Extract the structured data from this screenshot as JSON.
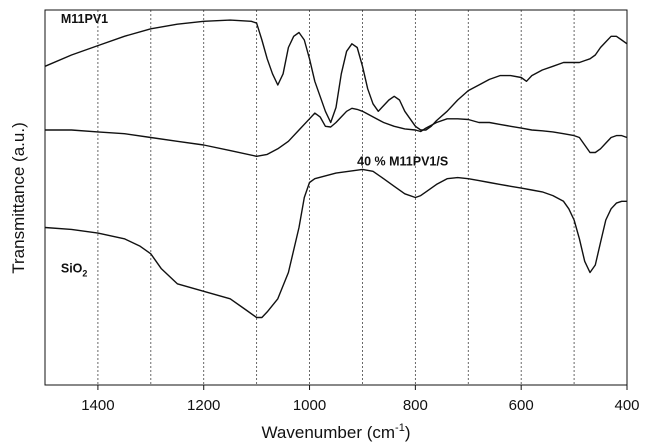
{
  "chart_data": {
    "type": "line",
    "title": "",
    "xlabel": "Wavenumber (cm",
    "xlabel_sup": "-1",
    "xlabel_tail": ")",
    "ylabel": "Transmittance (a.u.)",
    "xlim": [
      1500,
      400
    ],
    "x_reversed": true,
    "ylim": [
      0,
      100
    ],
    "y_ticks_shown": false,
    "xticks": [
      1400,
      1200,
      1000,
      800,
      600,
      400
    ],
    "gridlines_x": [
      1400,
      1300,
      1200,
      1100,
      1000,
      900,
      800,
      700,
      600,
      500
    ],
    "grid": "vertical dashed",
    "series": [
      {
        "name": "M11PV1",
        "label_parts": [
          "M11PV1"
        ],
        "points": [
          [
            1500,
            85
          ],
          [
            1450,
            88
          ],
          [
            1400,
            90.5
          ],
          [
            1350,
            93
          ],
          [
            1300,
            95
          ],
          [
            1250,
            96.2
          ],
          [
            1200,
            97
          ],
          [
            1150,
            97.3
          ],
          [
            1110,
            97
          ],
          [
            1100,
            96.5
          ],
          [
            1090,
            92
          ],
          [
            1080,
            87
          ],
          [
            1070,
            83
          ],
          [
            1060,
            80
          ],
          [
            1050,
            83
          ],
          [
            1040,
            90
          ],
          [
            1030,
            93
          ],
          [
            1020,
            94
          ],
          [
            1010,
            92
          ],
          [
            1000,
            87
          ],
          [
            990,
            81
          ],
          [
            980,
            77
          ],
          [
            970,
            73
          ],
          [
            960,
            70
          ],
          [
            950,
            74
          ],
          [
            940,
            83
          ],
          [
            930,
            89
          ],
          [
            920,
            91
          ],
          [
            910,
            90
          ],
          [
            900,
            85
          ],
          [
            890,
            79
          ],
          [
            880,
            75
          ],
          [
            870,
            73
          ],
          [
            860,
            74.5
          ],
          [
            850,
            76
          ],
          [
            840,
            77
          ],
          [
            830,
            76
          ],
          [
            820,
            73
          ],
          [
            810,
            71
          ],
          [
            800,
            69
          ],
          [
            790,
            68
          ],
          [
            780,
            68
          ],
          [
            770,
            69
          ],
          [
            760,
            70.5
          ],
          [
            740,
            73
          ],
          [
            720,
            76
          ],
          [
            700,
            78.5
          ],
          [
            680,
            80
          ],
          [
            660,
            81.5
          ],
          [
            640,
            82.5
          ],
          [
            620,
            82.5
          ],
          [
            600,
            82
          ],
          [
            590,
            81
          ],
          [
            580,
            82.5
          ],
          [
            560,
            84
          ],
          [
            540,
            85
          ],
          [
            520,
            86
          ],
          [
            500,
            86
          ],
          [
            490,
            86
          ],
          [
            480,
            86.5
          ],
          [
            470,
            87
          ],
          [
            460,
            88
          ],
          [
            450,
            90
          ],
          [
            440,
            91.5
          ],
          [
            430,
            93
          ],
          [
            420,
            93
          ],
          [
            410,
            92
          ],
          [
            400,
            91
          ]
        ]
      },
      {
        "name": "40 % M11PV1/S",
        "label_parts": [
          "40 % M11PV1/S"
        ],
        "points": [
          [
            1500,
            68
          ],
          [
            1450,
            68
          ],
          [
            1400,
            67.5
          ],
          [
            1350,
            67
          ],
          [
            1300,
            66
          ],
          [
            1250,
            65
          ],
          [
            1200,
            64
          ],
          [
            1150,
            62.5
          ],
          [
            1100,
            61
          ],
          [
            1080,
            61.5
          ],
          [
            1060,
            63
          ],
          [
            1040,
            65
          ],
          [
            1020,
            68
          ],
          [
            1000,
            71
          ],
          [
            990,
            72.5
          ],
          [
            980,
            71.5
          ],
          [
            970,
            69
          ],
          [
            960,
            68.8
          ],
          [
            950,
            70
          ],
          [
            940,
            71.5
          ],
          [
            930,
            73
          ],
          [
            920,
            73.8
          ],
          [
            910,
            73.5
          ],
          [
            900,
            73
          ],
          [
            880,
            71.5
          ],
          [
            860,
            70
          ],
          [
            840,
            69
          ],
          [
            820,
            68.3
          ],
          [
            800,
            68
          ],
          [
            790,
            67.6
          ],
          [
            780,
            68.5
          ],
          [
            760,
            70
          ],
          [
            740,
            71
          ],
          [
            720,
            71
          ],
          [
            700,
            70.8
          ],
          [
            680,
            70
          ],
          [
            660,
            70
          ],
          [
            640,
            69.5
          ],
          [
            620,
            69
          ],
          [
            600,
            68.5
          ],
          [
            580,
            68
          ],
          [
            560,
            67.8
          ],
          [
            540,
            67.5
          ],
          [
            520,
            67
          ],
          [
            500,
            66.5
          ],
          [
            490,
            66
          ],
          [
            480,
            64
          ],
          [
            470,
            62
          ],
          [
            460,
            62
          ],
          [
            450,
            63
          ],
          [
            440,
            64.5
          ],
          [
            430,
            66
          ],
          [
            420,
            66.5
          ],
          [
            410,
            66.5
          ],
          [
            400,
            66
          ]
        ]
      },
      {
        "name": "SiO2",
        "label_parts": [
          "SiO",
          "2"
        ],
        "points": [
          [
            1500,
            42
          ],
          [
            1450,
            41.5
          ],
          [
            1400,
            40.5
          ],
          [
            1350,
            39
          ],
          [
            1320,
            37
          ],
          [
            1300,
            35
          ],
          [
            1280,
            31
          ],
          [
            1250,
            27
          ],
          [
            1200,
            25
          ],
          [
            1150,
            23
          ],
          [
            1120,
            20
          ],
          [
            1100,
            18
          ],
          [
            1090,
            18
          ],
          [
            1080,
            19.5
          ],
          [
            1060,
            23
          ],
          [
            1040,
            30
          ],
          [
            1020,
            42
          ],
          [
            1010,
            50
          ],
          [
            1000,
            54
          ],
          [
            990,
            55
          ],
          [
            950,
            56.5
          ],
          [
            900,
            57.5
          ],
          [
            880,
            57
          ],
          [
            860,
            55
          ],
          [
            840,
            53
          ],
          [
            820,
            51
          ],
          [
            800,
            50
          ],
          [
            790,
            50.5
          ],
          [
            780,
            51.5
          ],
          [
            760,
            53.5
          ],
          [
            740,
            55
          ],
          [
            720,
            55.3
          ],
          [
            700,
            55
          ],
          [
            680,
            54.5
          ],
          [
            660,
            54
          ],
          [
            640,
            53.5
          ],
          [
            620,
            53
          ],
          [
            600,
            52.5
          ],
          [
            580,
            52
          ],
          [
            560,
            51.5
          ],
          [
            540,
            50.5
          ],
          [
            520,
            49
          ],
          [
            510,
            47
          ],
          [
            500,
            44
          ],
          [
            490,
            39
          ],
          [
            480,
            33
          ],
          [
            470,
            30
          ],
          [
            460,
            32
          ],
          [
            450,
            38
          ],
          [
            440,
            44
          ],
          [
            430,
            47
          ],
          [
            420,
            48.5
          ],
          [
            410,
            49
          ],
          [
            400,
            49
          ]
        ]
      }
    ]
  }
}
